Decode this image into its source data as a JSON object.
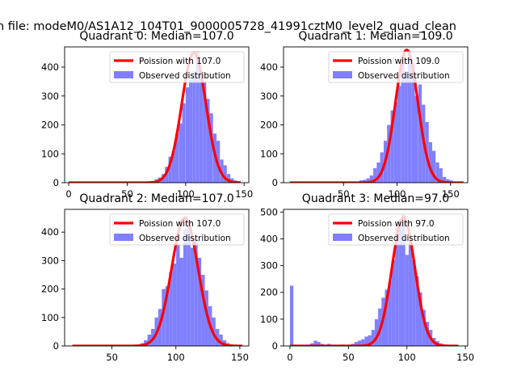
{
  "figure": {
    "suptitle": "n file: modeM0/AS1A12_104T01_9000005728_41991cztM0_level2_quad_clean"
  },
  "colors": {
    "hist": "#8080ff",
    "fit": "#ff0000",
    "axis": "#000000",
    "background": "#ffffff"
  },
  "chart_data": [
    {
      "type": "bar",
      "title": "Quadrant 0: Median=107.0",
      "xlabel": "",
      "ylabel": "",
      "xlim": [
        -3.5,
        154
      ],
      "ylim": [
        0,
        470
      ],
      "xticks": [
        0,
        50,
        100,
        150
      ],
      "yticks": [
        0,
        100,
        200,
        300,
        400
      ],
      "legend_position": "upper-right",
      "legend": [
        "Poission with 107.0",
        "Observed distribution"
      ],
      "fit_mean": 107.0,
      "fit_peak": 450,
      "fit_range": [
        0,
        147
      ],
      "hist_bins": [
        [
          0,
          3
        ],
        [
          2.9,
          3
        ],
        [
          5.9,
          3
        ],
        [
          8.8,
          3
        ],
        [
          11.8,
          3
        ],
        [
          14.7,
          3
        ],
        [
          17.6,
          3
        ],
        [
          20.6,
          3
        ],
        [
          23.5,
          3
        ],
        [
          26.5,
          3
        ],
        [
          29.4,
          3
        ],
        [
          32.3,
          3
        ],
        [
          35.3,
          3
        ],
        [
          38.2,
          3
        ],
        [
          41.2,
          3
        ],
        [
          44.1,
          3
        ],
        [
          47.0,
          3
        ],
        [
          50.0,
          3
        ],
        [
          52.9,
          3
        ],
        [
          55.9,
          3
        ],
        [
          58.8,
          3
        ],
        [
          61.7,
          3
        ],
        [
          64.7,
          3
        ],
        [
          67.6,
          3
        ],
        [
          70.6,
          5
        ],
        [
          73.5,
          12
        ],
        [
          76.4,
          18
        ],
        [
          79.4,
          30
        ],
        [
          82.3,
          55
        ],
        [
          85.3,
          90
        ],
        [
          88.2,
          110
        ],
        [
          91.1,
          170
        ],
        [
          94.1,
          205
        ],
        [
          97.0,
          275
        ],
        [
          100.0,
          330
        ],
        [
          102.9,
          355
        ],
        [
          105.8,
          385
        ],
        [
          108.8,
          455
        ],
        [
          111.7,
          380
        ],
        [
          114.7,
          350
        ],
        [
          117.6,
          290
        ],
        [
          120.5,
          240
        ],
        [
          123.5,
          170
        ],
        [
          126.4,
          145
        ],
        [
          129.4,
          80
        ],
        [
          132.3,
          60
        ],
        [
          135.3,
          30
        ],
        [
          138.2,
          15
        ],
        [
          141.1,
          8
        ],
        [
          144.1,
          5
        ]
      ]
    },
    {
      "type": "bar",
      "title": "Quadrant 1: Median=109.0",
      "xlabel": "",
      "ylabel": "",
      "xlim": [
        -6,
        166
      ],
      "ylim": [
        0,
        470
      ],
      "xticks": [
        50,
        100,
        150
      ],
      "yticks": [
        0,
        100,
        200,
        300,
        400
      ],
      "legend_position": "upper-right",
      "legend": [
        "Poission with 109.0",
        "Observed distribution"
      ],
      "fit_mean": 109.0,
      "fit_peak": 460,
      "fit_range": [
        0,
        162
      ],
      "hist_bins": [
        [
          0,
          3
        ],
        [
          3.2,
          3
        ],
        [
          6.5,
          3
        ],
        [
          9.7,
          3
        ],
        [
          13.0,
          3
        ],
        [
          16.2,
          3
        ],
        [
          19.4,
          3
        ],
        [
          22.7,
          3
        ],
        [
          25.9,
          3
        ],
        [
          29.2,
          3
        ],
        [
          32.4,
          3
        ],
        [
          35.6,
          3
        ],
        [
          38.9,
          3
        ],
        [
          42.1,
          3
        ],
        [
          45.4,
          3
        ],
        [
          48.6,
          3
        ],
        [
          51.8,
          3
        ],
        [
          55.1,
          3
        ],
        [
          58.3,
          3
        ],
        [
          61.6,
          3
        ],
        [
          64.8,
          8
        ],
        [
          68.0,
          10
        ],
        [
          71.3,
          15
        ],
        [
          74.5,
          25
        ],
        [
          77.8,
          50
        ],
        [
          81.0,
          70
        ],
        [
          84.2,
          105
        ],
        [
          87.5,
          145
        ],
        [
          90.7,
          200
        ],
        [
          94.0,
          250
        ],
        [
          97.2,
          280
        ],
        [
          100.4,
          335
        ],
        [
          103.7,
          415
        ],
        [
          106.9,
          385
        ],
        [
          110.2,
          455
        ],
        [
          113.4,
          410
        ],
        [
          116.6,
          300
        ],
        [
          119.9,
          340
        ],
        [
          123.1,
          270
        ],
        [
          126.4,
          210
        ],
        [
          129.6,
          140
        ],
        [
          132.8,
          110
        ],
        [
          136.1,
          70
        ],
        [
          139.3,
          50
        ],
        [
          142.6,
          20
        ],
        [
          145.8,
          12
        ],
        [
          149.0,
          8
        ],
        [
          152.3,
          3
        ],
        [
          155.5,
          3
        ],
        [
          158.8,
          3
        ]
      ]
    },
    {
      "type": "bar",
      "title": "Quadrant 2: Median=107.0",
      "xlabel": "",
      "ylabel": "",
      "xlim": [
        13,
        157
      ],
      "ylim": [
        0,
        480
      ],
      "xticks": [
        50,
        100,
        150
      ],
      "yticks": [
        0,
        100,
        200,
        300,
        400
      ],
      "legend_position": "upper-right",
      "legend": [
        "Poission with 107.0",
        "Observed distribution"
      ],
      "fit_mean": 107.0,
      "fit_peak": 450,
      "fit_range": [
        19,
        152
      ],
      "hist_bins": [
        [
          19.0,
          3
        ],
        [
          21.8,
          3
        ],
        [
          24.6,
          3
        ],
        [
          27.4,
          3
        ],
        [
          30.2,
          3
        ],
        [
          33.0,
          3
        ],
        [
          35.8,
          3
        ],
        [
          38.6,
          3
        ],
        [
          41.4,
          3
        ],
        [
          44.2,
          3
        ],
        [
          47.0,
          3
        ],
        [
          49.8,
          3
        ],
        [
          52.6,
          3
        ],
        [
          55.4,
          3
        ],
        [
          58.2,
          3
        ],
        [
          61.0,
          3
        ],
        [
          63.8,
          3
        ],
        [
          66.6,
          3
        ],
        [
          69.4,
          5
        ],
        [
          72.2,
          10
        ],
        [
          75.0,
          20
        ],
        [
          77.8,
          40
        ],
        [
          80.6,
          60
        ],
        [
          83.4,
          100
        ],
        [
          86.2,
          130
        ],
        [
          89.0,
          200
        ],
        [
          91.8,
          210
        ],
        [
          94.6,
          260
        ],
        [
          97.4,
          290
        ],
        [
          100.2,
          360
        ],
        [
          103.0,
          310
        ],
        [
          105.8,
          410
        ],
        [
          108.6,
          440
        ],
        [
          111.4,
          345
        ],
        [
          114.2,
          380
        ],
        [
          117.0,
          310
        ],
        [
          119.8,
          250
        ],
        [
          122.6,
          195
        ],
        [
          125.4,
          140
        ],
        [
          128.2,
          100
        ],
        [
          131.0,
          60
        ],
        [
          133.8,
          40
        ],
        [
          136.6,
          20
        ],
        [
          139.4,
          10
        ],
        [
          142.2,
          5
        ],
        [
          145.0,
          3
        ],
        [
          147.8,
          3
        ]
      ]
    },
    {
      "type": "bar",
      "title": "Quadrant 3: Median=97.0",
      "xlabel": "",
      "ylabel": "",
      "xlim": [
        -5.5,
        152
      ],
      "ylim": [
        0,
        510
      ],
      "xticks": [
        0,
        50,
        100,
        150
      ],
      "yticks": [
        0,
        100,
        200,
        300,
        400,
        500
      ],
      "legend_position": "upper-right",
      "legend": [
        "Poission with 97.0",
        "Observed distribution"
      ],
      "fit_mean": 97.0,
      "fit_peak": 480,
      "fit_range": [
        0,
        144
      ],
      "hist_bins": [
        [
          0,
          225
        ],
        [
          2.9,
          5
        ],
        [
          5.8,
          3
        ],
        [
          8.7,
          3
        ],
        [
          11.6,
          3
        ],
        [
          14.5,
          5
        ],
        [
          17.4,
          10
        ],
        [
          20.3,
          20
        ],
        [
          23.2,
          15
        ],
        [
          26.1,
          8
        ],
        [
          29.0,
          5
        ],
        [
          31.9,
          8
        ],
        [
          34.8,
          5
        ],
        [
          37.7,
          3
        ],
        [
          40.6,
          3
        ],
        [
          43.5,
          5
        ],
        [
          46.4,
          3
        ],
        [
          49.3,
          5
        ],
        [
          52.2,
          8
        ],
        [
          55.1,
          15
        ],
        [
          58.0,
          20
        ],
        [
          60.9,
          25
        ],
        [
          63.8,
          35
        ],
        [
          66.7,
          40
        ],
        [
          69.6,
          60
        ],
        [
          72.5,
          100
        ],
        [
          75.4,
          140
        ],
        [
          78.3,
          180
        ],
        [
          81.2,
          210
        ],
        [
          84.1,
          240
        ],
        [
          87.0,
          320
        ],
        [
          89.9,
          440
        ],
        [
          92.8,
          475
        ],
        [
          95.7,
          490
        ],
        [
          98.6,
          340
        ],
        [
          101.5,
          390
        ],
        [
          104.4,
          320
        ],
        [
          107.3,
          260
        ],
        [
          110.2,
          200
        ],
        [
          113.1,
          135
        ],
        [
          116.0,
          90
        ],
        [
          118.9,
          60
        ],
        [
          121.8,
          30
        ],
        [
          124.7,
          18
        ],
        [
          127.6,
          10
        ],
        [
          130.5,
          5
        ],
        [
          133.4,
          3
        ]
      ]
    }
  ]
}
